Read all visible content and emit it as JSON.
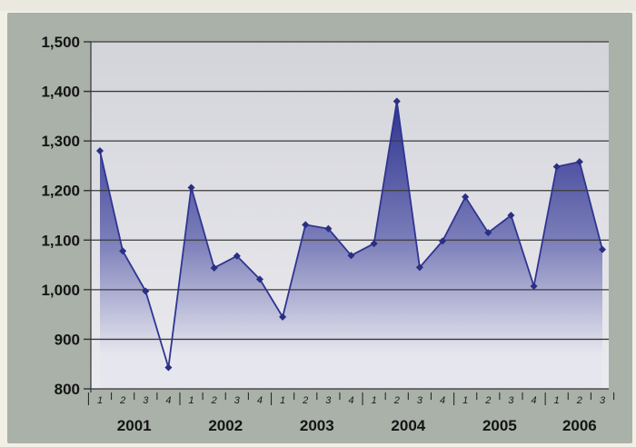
{
  "colors": {
    "background": "#f2efe7",
    "panel": "#a9b1a9",
    "line": "#2f3590",
    "fill_top": "#2e3390",
    "fill_bottom": "#e8e8ee",
    "grid": "#3b3b3b"
  },
  "chart_data": {
    "type": "area",
    "title": "",
    "xlabel": "",
    "ylabel": "",
    "ylim": [
      800,
      1500
    ],
    "yticks": [
      800,
      900,
      1000,
      1100,
      1200,
      1300,
      1400,
      1500
    ],
    "ytick_labels": [
      "800",
      "900",
      "1,000",
      "1,100",
      "1,200",
      "1,300",
      "1,400",
      "1,500"
    ],
    "grid": true,
    "legend": "none",
    "years": [
      "2001",
      "2002",
      "2003",
      "2004",
      "2005",
      "2006"
    ],
    "quarters": [
      "1",
      "2",
      "3",
      "4",
      "1",
      "2",
      "3",
      "4",
      "1",
      "2",
      "3",
      "4",
      "1",
      "2",
      "3",
      "4",
      "1",
      "2",
      "3",
      "4",
      "1",
      "2",
      "3"
    ],
    "series": [
      {
        "values": [
          1280,
          1078,
          997,
          843,
          1206,
          1044,
          1068,
          1021,
          945,
          1131,
          1123,
          1069,
          1093,
          1380,
          1045,
          1098,
          1187,
          1115,
          1150,
          1007,
          1248,
          1258,
          1081
        ]
      }
    ]
  }
}
